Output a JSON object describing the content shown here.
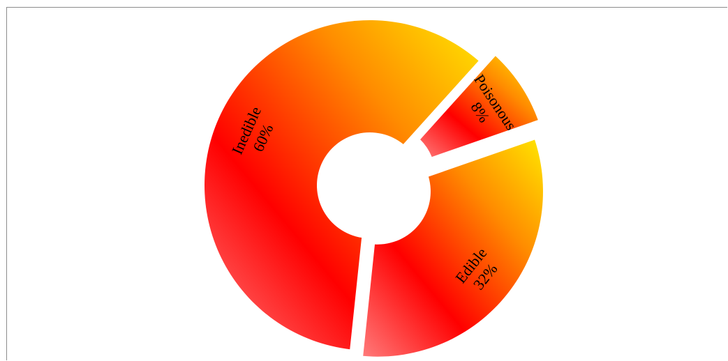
{
  "chart_data": {
    "type": "pie",
    "variant": "donut-exploded",
    "title": "",
    "categories": [
      "Inedible",
      "Poisonous",
      "Edible"
    ],
    "values": [
      60,
      8,
      32
    ],
    "value_labels": [
      "60%",
      "8%",
      "32%"
    ],
    "legend": "none",
    "colors": {
      "gradient": [
        "#ff7a7a",
        "#ff0000",
        "#ff8c00",
        "#ffe600"
      ],
      "background": "#ffffff",
      "frame": "#8c8c8c"
    }
  }
}
